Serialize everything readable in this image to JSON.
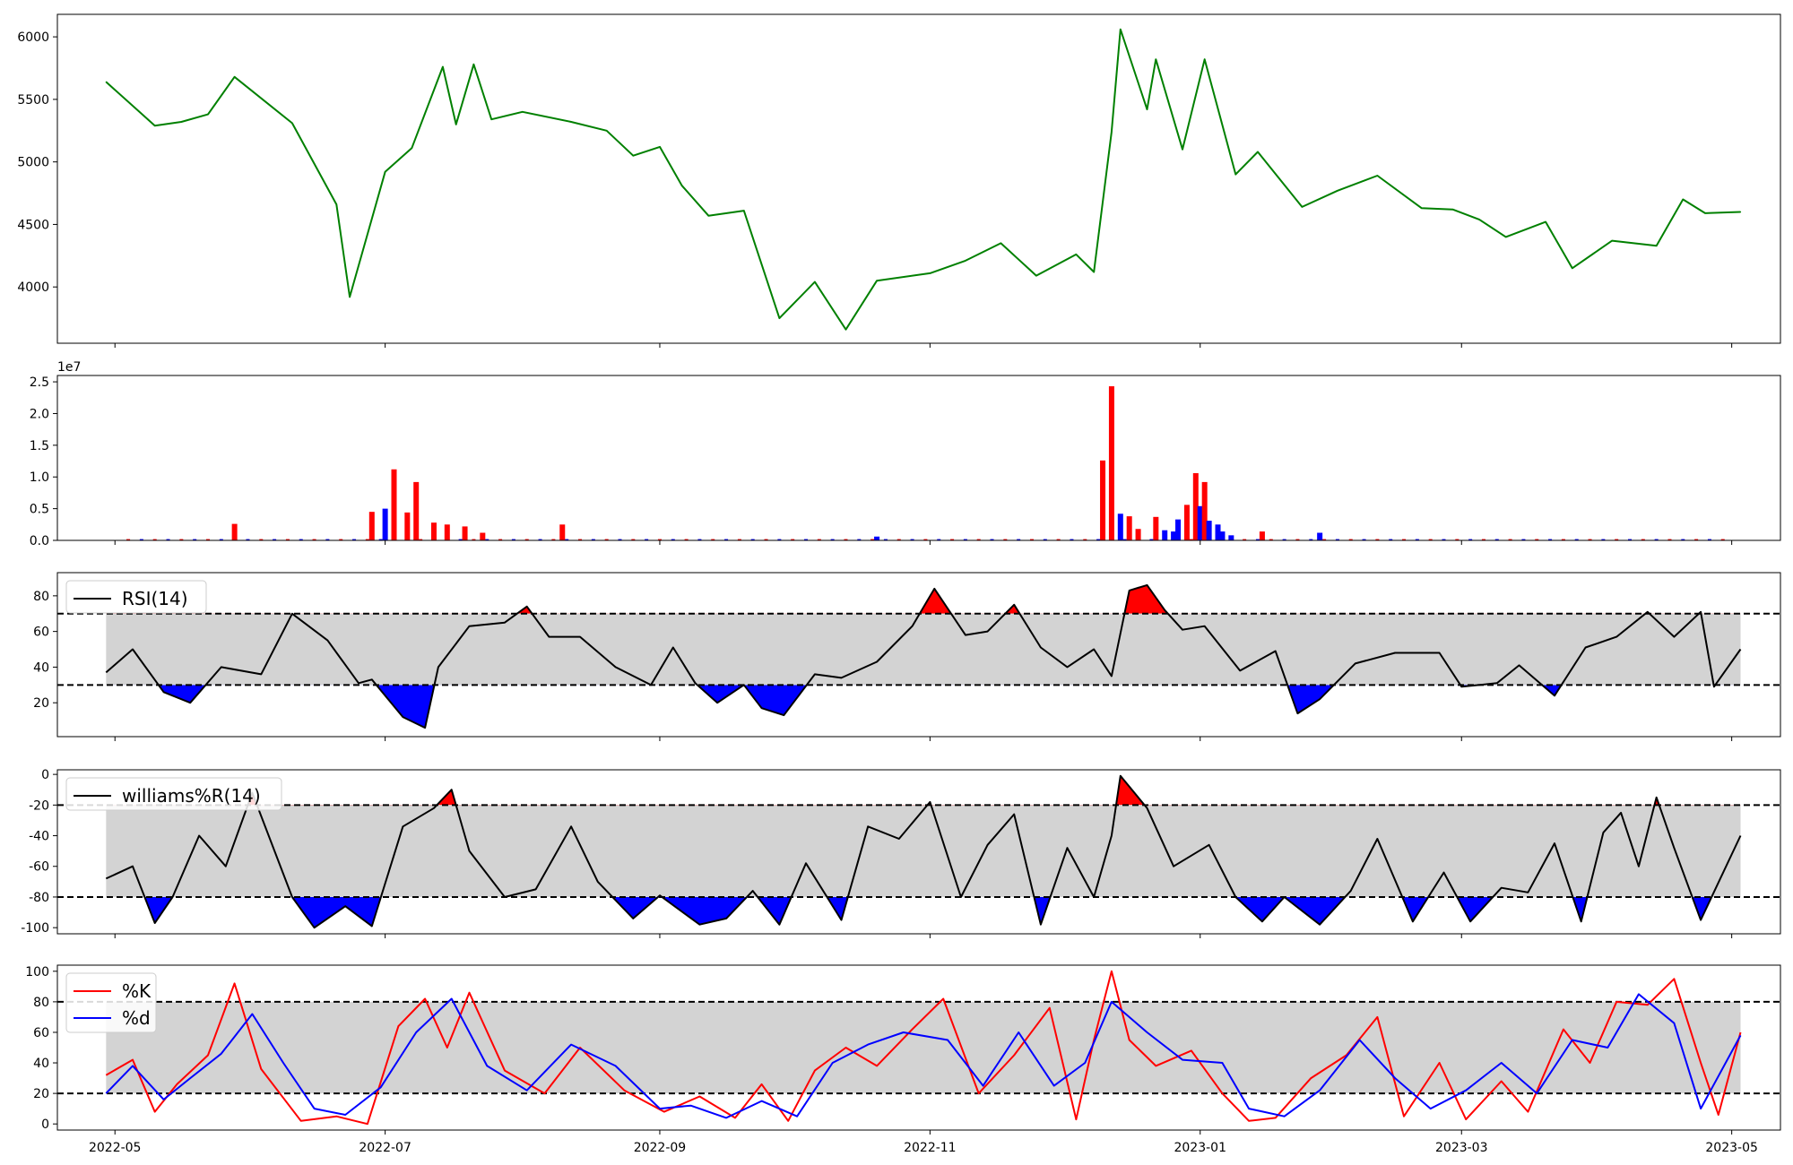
{
  "figure": {
    "x_tick_labels": [
      "2022-05",
      "2022-07",
      "2022-09",
      "2022-11",
      "2023-01",
      "2023-03",
      "2023-05"
    ]
  },
  "colors": {
    "price": "#008000",
    "up": "#ff0000",
    "down": "#0000ff",
    "band": "#d3d3d3",
    "line": "#000000",
    "k": "#ff0000",
    "d": "#0000ff"
  },
  "chart_data": [
    {
      "type": "line",
      "panel": "price",
      "yticks": [
        "4000",
        "4500",
        "5000",
        "5500",
        "6000"
      ],
      "ylim": [
        3550,
        6180
      ],
      "series": [
        {
          "x": [
            "2022-04-29",
            "2022-05-10",
            "2022-05-16",
            "2022-05-22",
            "2022-05-28",
            "2022-06-10",
            "2022-06-20",
            "2022-06-23",
            "2022-07-01",
            "2022-07-07",
            "2022-07-14",
            "2022-07-17",
            "2022-07-21",
            "2022-07-25",
            "2022-08-01",
            "2022-08-12",
            "2022-08-20",
            "2022-08-26",
            "2022-09-01",
            "2022-09-06",
            "2022-09-12",
            "2022-09-20",
            "2022-09-28",
            "2022-10-06",
            "2022-10-13",
            "2022-10-20",
            "2022-11-01",
            "2022-11-09",
            "2022-11-17",
            "2022-11-25",
            "2022-12-04",
            "2022-12-08",
            "2022-12-12",
            "2022-12-14",
            "2022-12-20",
            "2022-12-22",
            "2022-12-28",
            "2023-01-02",
            "2023-01-09",
            "2023-01-14",
            "2023-01-24",
            "2023-02-01",
            "2023-02-10",
            "2023-02-20",
            "2023-02-27",
            "2023-03-05",
            "2023-03-11",
            "2023-03-20",
            "2023-03-26",
            "2023-04-04",
            "2023-04-14",
            "2023-04-20",
            "2023-04-25",
            "2023-05-03"
          ],
          "values": [
            5640,
            5290,
            5320,
            5380,
            5680,
            5310,
            4660,
            3920,
            4920,
            5110,
            5760,
            5300,
            5780,
            5340,
            5400,
            5320,
            5250,
            5050,
            5120,
            4810,
            4570,
            4610,
            3750,
            4040,
            3660,
            4050,
            4110,
            4210,
            4350,
            4090,
            4260,
            4120,
            5240,
            6060,
            5420,
            5820,
            5100,
            5820,
            4900,
            5080,
            4640,
            4770,
            4890,
            4630,
            4620,
            4540,
            4400,
            4520,
            4150,
            4370,
            4330,
            4700,
            4590,
            4600
          ]
        }
      ]
    },
    {
      "type": "bar",
      "panel": "volume",
      "yticks": [
        "0.0",
        "0.5",
        "1.0",
        "1.5",
        "2.0",
        "2.5"
      ],
      "ylim": [
        0,
        2.6
      ],
      "offset_label": "1e7",
      "x": [
        "2022-05-28",
        "2022-06-28",
        "2022-07-01",
        "2022-07-03",
        "2022-07-06",
        "2022-07-08",
        "2022-07-12",
        "2022-07-15",
        "2022-07-19",
        "2022-07-23",
        "2022-08-10",
        "2022-10-20",
        "2022-12-10",
        "2022-12-12",
        "2022-12-14",
        "2022-12-16",
        "2022-12-18",
        "2022-12-22",
        "2022-12-24",
        "2022-12-26",
        "2022-12-27",
        "2022-12-29",
        "2022-12-31",
        "2023-01-01",
        "2023-01-02",
        "2023-01-03",
        "2023-01-05",
        "2023-01-06",
        "2023-01-08",
        "2023-01-15",
        "2023-01-28"
      ],
      "values": [
        0.26,
        0.45,
        0.5,
        1.12,
        0.44,
        0.92,
        0.28,
        0.25,
        0.22,
        0.12,
        0.25,
        0.06,
        1.26,
        2.43,
        0.42,
        0.38,
        0.18,
        0.37,
        0.16,
        0.14,
        0.33,
        0.56,
        1.06,
        0.54,
        0.92,
        0.31,
        0.25,
        0.14,
        0.08,
        0.14,
        0.12
      ],
      "direction": [
        "up",
        "up",
        "down",
        "up",
        "up",
        "up",
        "up",
        "up",
        "up",
        "up",
        "up",
        "down",
        "up",
        "up",
        "down",
        "up",
        "up",
        "up",
        "down",
        "down",
        "down",
        "up",
        "up",
        "down",
        "up",
        "down",
        "down",
        "down",
        "down",
        "up",
        "down"
      ]
    },
    {
      "type": "line",
      "panel": "rsi",
      "yticks": [
        "20",
        "40",
        "60",
        "80"
      ],
      "ylim": [
        1,
        93
      ],
      "thresholds": [
        30,
        70
      ],
      "series": [
        {
          "name": "RSI(14)",
          "x": [
            "2022-04-29",
            "2022-05-05",
            "2022-05-12",
            "2022-05-18",
            "2022-05-25",
            "2022-06-03",
            "2022-06-10",
            "2022-06-18",
            "2022-06-25",
            "2022-06-28",
            "2022-07-05",
            "2022-07-10",
            "2022-07-13",
            "2022-07-20",
            "2022-07-28",
            "2022-08-02",
            "2022-08-07",
            "2022-08-14",
            "2022-08-22",
            "2022-08-30",
            "2022-09-04",
            "2022-09-09",
            "2022-09-14",
            "2022-09-20",
            "2022-09-24",
            "2022-09-29",
            "2022-10-06",
            "2022-10-12",
            "2022-10-20",
            "2022-10-28",
            "2022-11-02",
            "2022-11-09",
            "2022-11-14",
            "2022-11-20",
            "2022-11-26",
            "2022-12-02",
            "2022-12-08",
            "2022-12-12",
            "2022-12-16",
            "2022-12-20",
            "2022-12-24",
            "2022-12-28",
            "2023-01-02",
            "2023-01-10",
            "2023-01-18",
            "2023-01-23",
            "2023-01-28",
            "2023-02-05",
            "2023-02-14",
            "2023-02-24",
            "2023-03-01",
            "2023-03-09",
            "2023-03-14",
            "2023-03-22",
            "2023-03-29",
            "2023-04-05",
            "2023-04-12",
            "2023-04-18",
            "2023-04-24",
            "2023-04-27",
            "2023-05-03"
          ],
          "values": [
            37,
            50,
            26,
            20,
            40,
            36,
            70,
            55,
            31,
            33,
            12,
            6,
            40,
            63,
            65,
            74,
            57,
            57,
            40,
            30,
            51,
            31,
            20,
            30,
            17,
            13,
            36,
            34,
            43,
            63,
            84,
            58,
            60,
            75,
            51,
            40,
            50,
            35,
            83,
            86,
            72,
            61,
            63,
            38,
            49,
            14,
            22,
            42,
            48,
            48,
            29,
            31,
            41,
            24,
            51,
            57,
            71,
            57,
            71,
            29,
            50
          ]
        }
      ]
    },
    {
      "type": "line",
      "panel": "williams",
      "yticks": [
        "0",
        "-20",
        "-40",
        "-60",
        "-80",
        "-100"
      ],
      "ylim": [
        -104,
        3
      ],
      "thresholds": [
        -20,
        -80
      ],
      "series": [
        {
          "name": "williams%R(14)",
          "x": [
            "2022-04-29",
            "2022-05-05",
            "2022-05-10",
            "2022-05-14",
            "2022-05-20",
            "2022-05-26",
            "2022-06-01",
            "2022-06-10",
            "2022-06-15",
            "2022-06-22",
            "2022-06-28",
            "2022-07-05",
            "2022-07-12",
            "2022-07-16",
            "2022-07-20",
            "2022-07-28",
            "2022-08-04",
            "2022-08-12",
            "2022-08-18",
            "2022-08-26",
            "2022-09-01",
            "2022-09-10",
            "2022-09-16",
            "2022-09-22",
            "2022-09-28",
            "2022-10-04",
            "2022-10-12",
            "2022-10-18",
            "2022-10-25",
            "2022-11-01",
            "2022-11-08",
            "2022-11-14",
            "2022-11-20",
            "2022-11-26",
            "2022-12-02",
            "2022-12-08",
            "2022-12-12",
            "2022-12-14",
            "2022-12-20",
            "2022-12-26",
            "2023-01-03",
            "2023-01-09",
            "2023-01-15",
            "2023-01-20",
            "2023-01-28",
            "2023-02-04",
            "2023-02-10",
            "2023-02-18",
            "2023-02-25",
            "2023-03-03",
            "2023-03-10",
            "2023-03-16",
            "2023-03-22",
            "2023-03-28",
            "2023-04-02",
            "2023-04-06",
            "2023-04-10",
            "2023-04-14",
            "2023-04-18",
            "2023-04-24",
            "2023-05-03"
          ],
          "values": [
            -68,
            -60,
            -97,
            -80,
            -40,
            -60,
            -12,
            -80,
            -100,
            -86,
            -99,
            -34,
            -22,
            -10,
            -50,
            -80,
            -75,
            -34,
            -70,
            -94,
            -79,
            -98,
            -94,
            -76,
            -98,
            -58,
            -95,
            -34,
            -42,
            -18,
            -80,
            -46,
            -26,
            -98,
            -48,
            -80,
            -40,
            -1,
            -22,
            -60,
            -46,
            -80,
            -96,
            -80,
            -98,
            -76,
            -42,
            -96,
            -64,
            -96,
            -74,
            -77,
            -45,
            -96,
            -38,
            -25,
            -60,
            -15,
            -48,
            -95,
            -40
          ]
        }
      ]
    },
    {
      "type": "line",
      "panel": "stochastic",
      "yticks": [
        "0",
        "20",
        "40",
        "60",
        "80",
        "100"
      ],
      "ylim": [
        -4,
        104
      ],
      "thresholds": [
        20,
        80
      ],
      "series": [
        {
          "name": "%K",
          "x": [
            "2022-04-29",
            "2022-05-05",
            "2022-05-10",
            "2022-05-15",
            "2022-05-22",
            "2022-05-28",
            "2022-06-03",
            "2022-06-12",
            "2022-06-20",
            "2022-06-27",
            "2022-07-04",
            "2022-07-10",
            "2022-07-15",
            "2022-07-20",
            "2022-07-28",
            "2022-08-06",
            "2022-08-14",
            "2022-08-24",
            "2022-09-02",
            "2022-09-10",
            "2022-09-18",
            "2022-09-24",
            "2022-09-30",
            "2022-10-06",
            "2022-10-13",
            "2022-10-20",
            "2022-10-28",
            "2022-11-04",
            "2022-11-12",
            "2022-11-20",
            "2022-11-28",
            "2022-12-04",
            "2022-12-08",
            "2022-12-12",
            "2022-12-16",
            "2022-12-22",
            "2022-12-30",
            "2023-01-06",
            "2023-01-12",
            "2023-01-18",
            "2023-01-26",
            "2023-02-03",
            "2023-02-10",
            "2023-02-16",
            "2023-02-24",
            "2023-03-02",
            "2023-03-10",
            "2023-03-16",
            "2023-03-24",
            "2023-03-30",
            "2023-04-05",
            "2023-04-12",
            "2023-04-18",
            "2023-04-24",
            "2023-04-28",
            "2023-05-03"
          ],
          "values": [
            32,
            42,
            8,
            26,
            45,
            92,
            36,
            2,
            5,
            0,
            64,
            82,
            50,
            86,
            35,
            20,
            50,
            22,
            8,
            18,
            4,
            26,
            2,
            35,
            50,
            38,
            62,
            82,
            20,
            45,
            76,
            3,
            55,
            100,
            55,
            38,
            48,
            20,
            2,
            4,
            30,
            45,
            70,
            5,
            40,
            3,
            28,
            8,
            62,
            40,
            80,
            78,
            95,
            40,
            6,
            60
          ]
        },
        {
          "name": "%d",
          "x": [
            "2022-04-29",
            "2022-05-05",
            "2022-05-12",
            "2022-05-18",
            "2022-05-25",
            "2022-06-01",
            "2022-06-08",
            "2022-06-15",
            "2022-06-22",
            "2022-06-30",
            "2022-07-08",
            "2022-07-16",
            "2022-07-24",
            "2022-08-02",
            "2022-08-12",
            "2022-08-22",
            "2022-09-01",
            "2022-09-08",
            "2022-09-16",
            "2022-09-24",
            "2022-10-02",
            "2022-10-10",
            "2022-10-18",
            "2022-10-26",
            "2022-11-05",
            "2022-11-13",
            "2022-11-21",
            "2022-11-29",
            "2022-12-06",
            "2022-12-12",
            "2022-12-20",
            "2022-12-28",
            "2023-01-06",
            "2023-01-12",
            "2023-01-20",
            "2023-01-28",
            "2023-02-06",
            "2023-02-14",
            "2023-02-22",
            "2023-03-02",
            "2023-03-10",
            "2023-03-18",
            "2023-03-26",
            "2023-04-03",
            "2023-04-10",
            "2023-04-18",
            "2023-04-24",
            "2023-05-03"
          ],
          "values": [
            20,
            38,
            16,
            30,
            46,
            72,
            40,
            10,
            6,
            24,
            60,
            82,
            38,
            22,
            52,
            38,
            10,
            12,
            4,
            15,
            5,
            40,
            52,
            60,
            55,
            25,
            60,
            25,
            40,
            80,
            60,
            42,
            40,
            10,
            5,
            22,
            55,
            30,
            10,
            22,
            40,
            20,
            55,
            50,
            85,
            66,
            10,
            58
          ]
        }
      ]
    }
  ]
}
